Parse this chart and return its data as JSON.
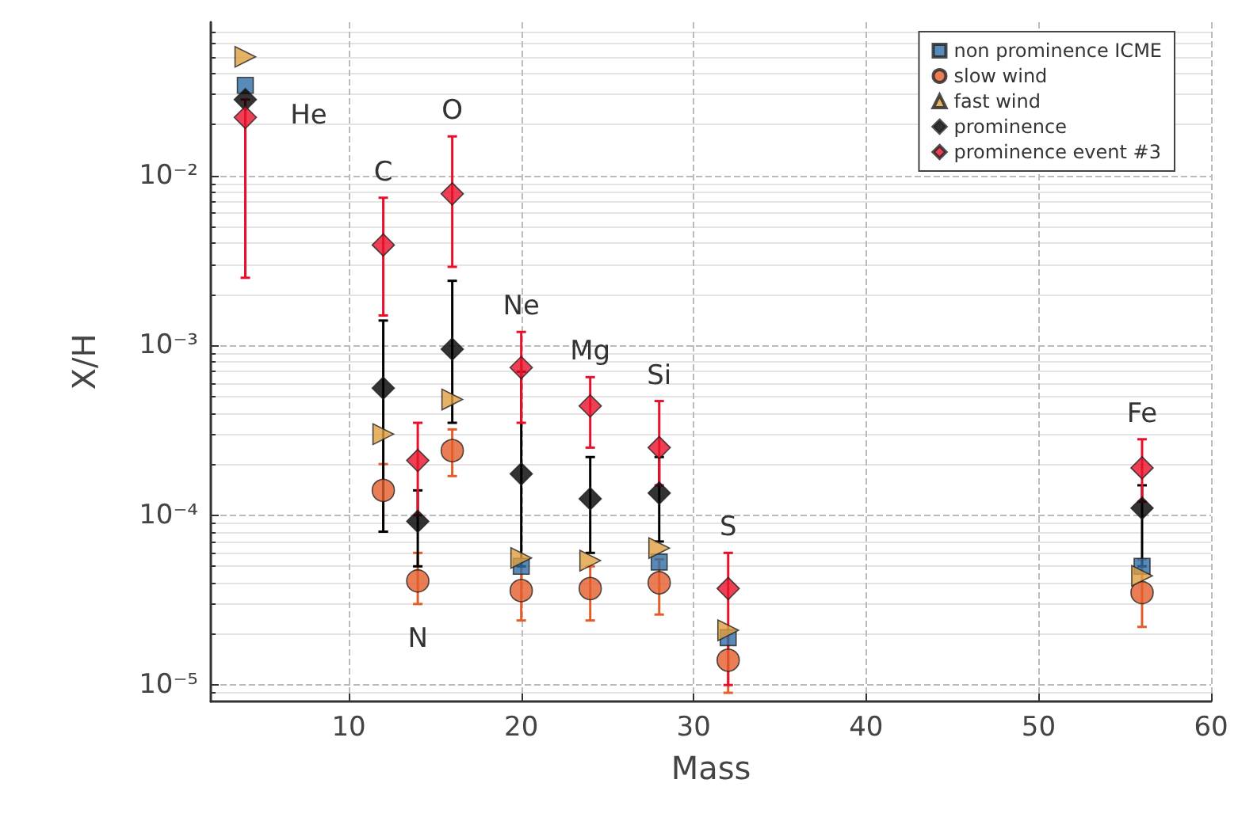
{
  "chart_data": {
    "type": "scatter",
    "xlabel": "Mass",
    "ylabel": "X/H",
    "log": "y",
    "grid": true,
    "legend": "top right",
    "xlim": [
      2,
      60
    ],
    "xticks": [
      10,
      20,
      30,
      40,
      50,
      60
    ],
    "ylim": [
      8e-06,
      0.08
    ],
    "yticks": [
      {
        "value": 1e-05,
        "label": "10⁻⁵"
      },
      {
        "value": 0.0001,
        "label": "10⁻⁴"
      },
      {
        "value": 0.001,
        "label": "10⁻³"
      },
      {
        "value": 0.01,
        "label": "10⁻²"
      }
    ],
    "x": [
      4,
      12,
      14,
      16,
      20,
      24,
      28,
      32,
      56
    ],
    "series": [
      {
        "name": "non prominence ICME",
        "color": "#2e6ea6",
        "marker": "square",
        "values": [
          0.034,
          null,
          null,
          null,
          5e-05,
          null,
          5.3e-05,
          1.9e-05,
          5e-05
        ]
      },
      {
        "name": "slow wind",
        "color": "#e35d2a",
        "marker": "circle",
        "values": [
          null,
          0.00014,
          4.1e-05,
          0.00024,
          3.6e-05,
          3.7e-05,
          4e-05,
          1.4e-05,
          3.5e-05
        ],
        "errors": [
          null,
          [
            8e-05,
            0.0002
          ],
          [
            3e-05,
            6e-05
          ],
          [
            0.00017,
            0.00032
          ],
          [
            2.4e-05,
            5e-05
          ],
          [
            2.4e-05,
            5e-05
          ],
          [
            2.6e-05,
            5.5e-05
          ],
          [
            9e-06,
            2e-05
          ],
          [
            2.2e-05,
            5.5e-05
          ]
        ]
      },
      {
        "name": "fast wind",
        "color": "#e0a040",
        "marker": "triangle",
        "values": [
          0.05,
          0.0003,
          null,
          0.00048,
          5.6e-05,
          5.4e-05,
          6.4e-05,
          2.1e-05,
          4.4e-05
        ]
      },
      {
        "name": "prominence",
        "color": "#000000",
        "marker": "diamond",
        "values": [
          0.028,
          0.00056,
          9.2e-05,
          0.00095,
          0.000175,
          0.000125,
          0.000135,
          null,
          0.00011
        ],
        "errors": [
          null,
          [
            8e-05,
            0.0014
          ],
          [
            5e-05,
            0.00014
          ],
          [
            0.00035,
            0.0024
          ],
          [
            5e-05,
            0.0007
          ],
          [
            6e-05,
            0.00022
          ],
          [
            7e-05,
            0.00022
          ],
          null,
          [
            5e-05,
            0.00015
          ]
        ]
      },
      {
        "name": "prominence event #3",
        "color": "#e8102a",
        "marker": "diamond",
        "values": [
          0.022,
          0.0039,
          0.00021,
          0.0078,
          0.00074,
          0.00044,
          0.00025,
          3.7e-05,
          0.00019
        ],
        "errors": [
          [
            0.0025,
            0.028
          ],
          [
            0.0015,
            0.0074
          ],
          [
            0.0001,
            0.00035
          ],
          [
            0.0029,
            0.017
          ],
          [
            0.00035,
            0.0012
          ],
          [
            0.00025,
            0.00065
          ],
          [
            0.00015,
            0.00047
          ],
          [
            1e-05,
            6e-05
          ],
          [
            0.00012,
            0.00028
          ]
        ]
      }
    ],
    "annotations": [
      {
        "text": "He",
        "x": 4,
        "y": 0.028
      },
      {
        "text": "C",
        "x": 12,
        "y": 0.0039
      },
      {
        "text": "O",
        "x": 16,
        "y": 0.0078
      },
      {
        "text": "N",
        "x": 14,
        "y": 4.1e-05
      },
      {
        "text": "Ne",
        "x": 20,
        "y": 0.00074
      },
      {
        "text": "Mg",
        "x": 24,
        "y": 0.00044
      },
      {
        "text": "Si",
        "x": 28,
        "y": 0.00025
      },
      {
        "text": "S",
        "x": 32,
        "y": 3.7e-05
      },
      {
        "text": "Fe",
        "x": 56,
        "y": 0.00019
      }
    ]
  }
}
